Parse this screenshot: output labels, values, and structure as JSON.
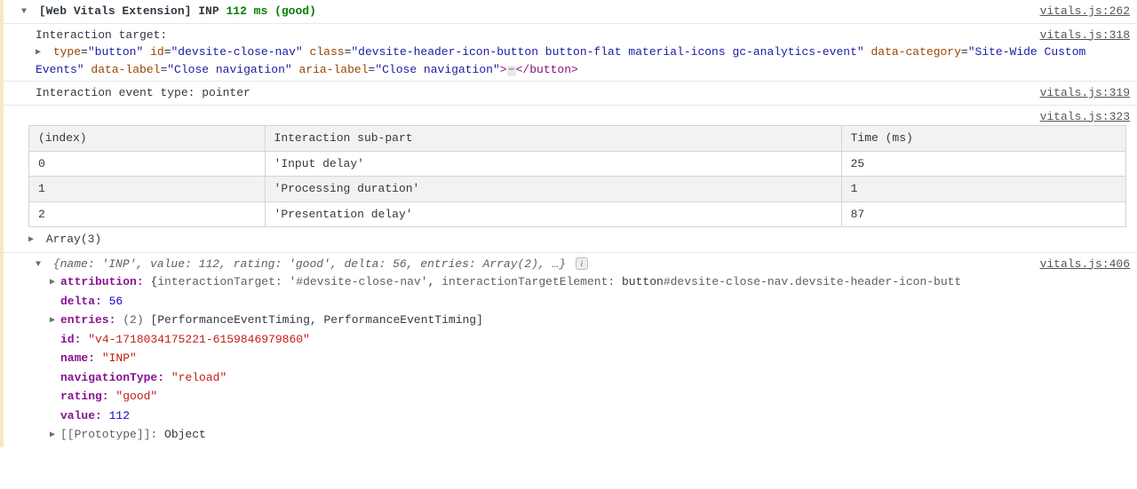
{
  "header": {
    "prefix": "[Web Vitals Extension] INP",
    "value": "112 ms (good)",
    "source": "vitals.js:262"
  },
  "interactionTarget": {
    "label": "Interaction target:",
    "source": "vitals.js:318",
    "element": {
      "open_tag_start": "<",
      "tag": "button",
      "attrs": [
        {
          "name": "type",
          "value": "button"
        },
        {
          "name": "id",
          "value": "devsite-close-nav"
        },
        {
          "name": "class",
          "value": "devsite-header-icon-button button-flat material-icons gc-analytics-event"
        },
        {
          "name": "data-category",
          "value": "Site-Wide Custom Events"
        },
        {
          "name": "data-label",
          "value": "Close navigation"
        },
        {
          "name": "aria-label",
          "value": "Close navigation"
        }
      ],
      "close": "</button>"
    }
  },
  "eventType": {
    "text": "Interaction event type: pointer",
    "source": "vitals.js:319"
  },
  "breakdown": {
    "source": "vitals.js:323",
    "columns": [
      "(index)",
      "Interaction sub-part",
      "Time (ms)"
    ],
    "rows": [
      [
        "0",
        "'Input delay'",
        "25"
      ],
      [
        "1",
        "'Processing duration'",
        "1"
      ],
      [
        "2",
        "'Presentation delay'",
        "87"
      ]
    ],
    "below": "Array(3)"
  },
  "object": {
    "source": "vitals.js:406",
    "preview": {
      "parts": [
        {
          "k": "name",
          "v": "'INP'"
        },
        {
          "k": "value",
          "v": "112"
        },
        {
          "k": "rating",
          "v": "'good'"
        },
        {
          "k": "delta",
          "v": "56"
        },
        {
          "k": "entries",
          "v": "Array(2)"
        }
      ],
      "trail": ", …}"
    },
    "attribution": {
      "key": "attribution",
      "inner": [
        {
          "k": "interactionTarget",
          "v": "'#devsite-close-nav'"
        },
        {
          "k": "interactionTargetElement",
          "v_prefix": "button",
          "v_suffix": "#devsite-close-nav.devsite-header-icon-butt"
        }
      ]
    },
    "props": [
      {
        "k": "delta",
        "type": "num",
        "v": "56"
      },
      {
        "k": "entries",
        "expand": true,
        "count": "(2)",
        "v": "[PerformanceEventTiming, PerformanceEventTiming]"
      },
      {
        "k": "id",
        "type": "str",
        "v": "\"v4-1718034175221-6159846979860\""
      },
      {
        "k": "name",
        "type": "str",
        "v": "\"INP\""
      },
      {
        "k": "navigationType",
        "type": "str",
        "v": "\"reload\""
      },
      {
        "k": "rating",
        "type": "str",
        "v": "\"good\""
      },
      {
        "k": "value",
        "type": "num",
        "v": "112"
      }
    ],
    "prototype": {
      "k": "[[Prototype]]",
      "v": "Object"
    }
  }
}
